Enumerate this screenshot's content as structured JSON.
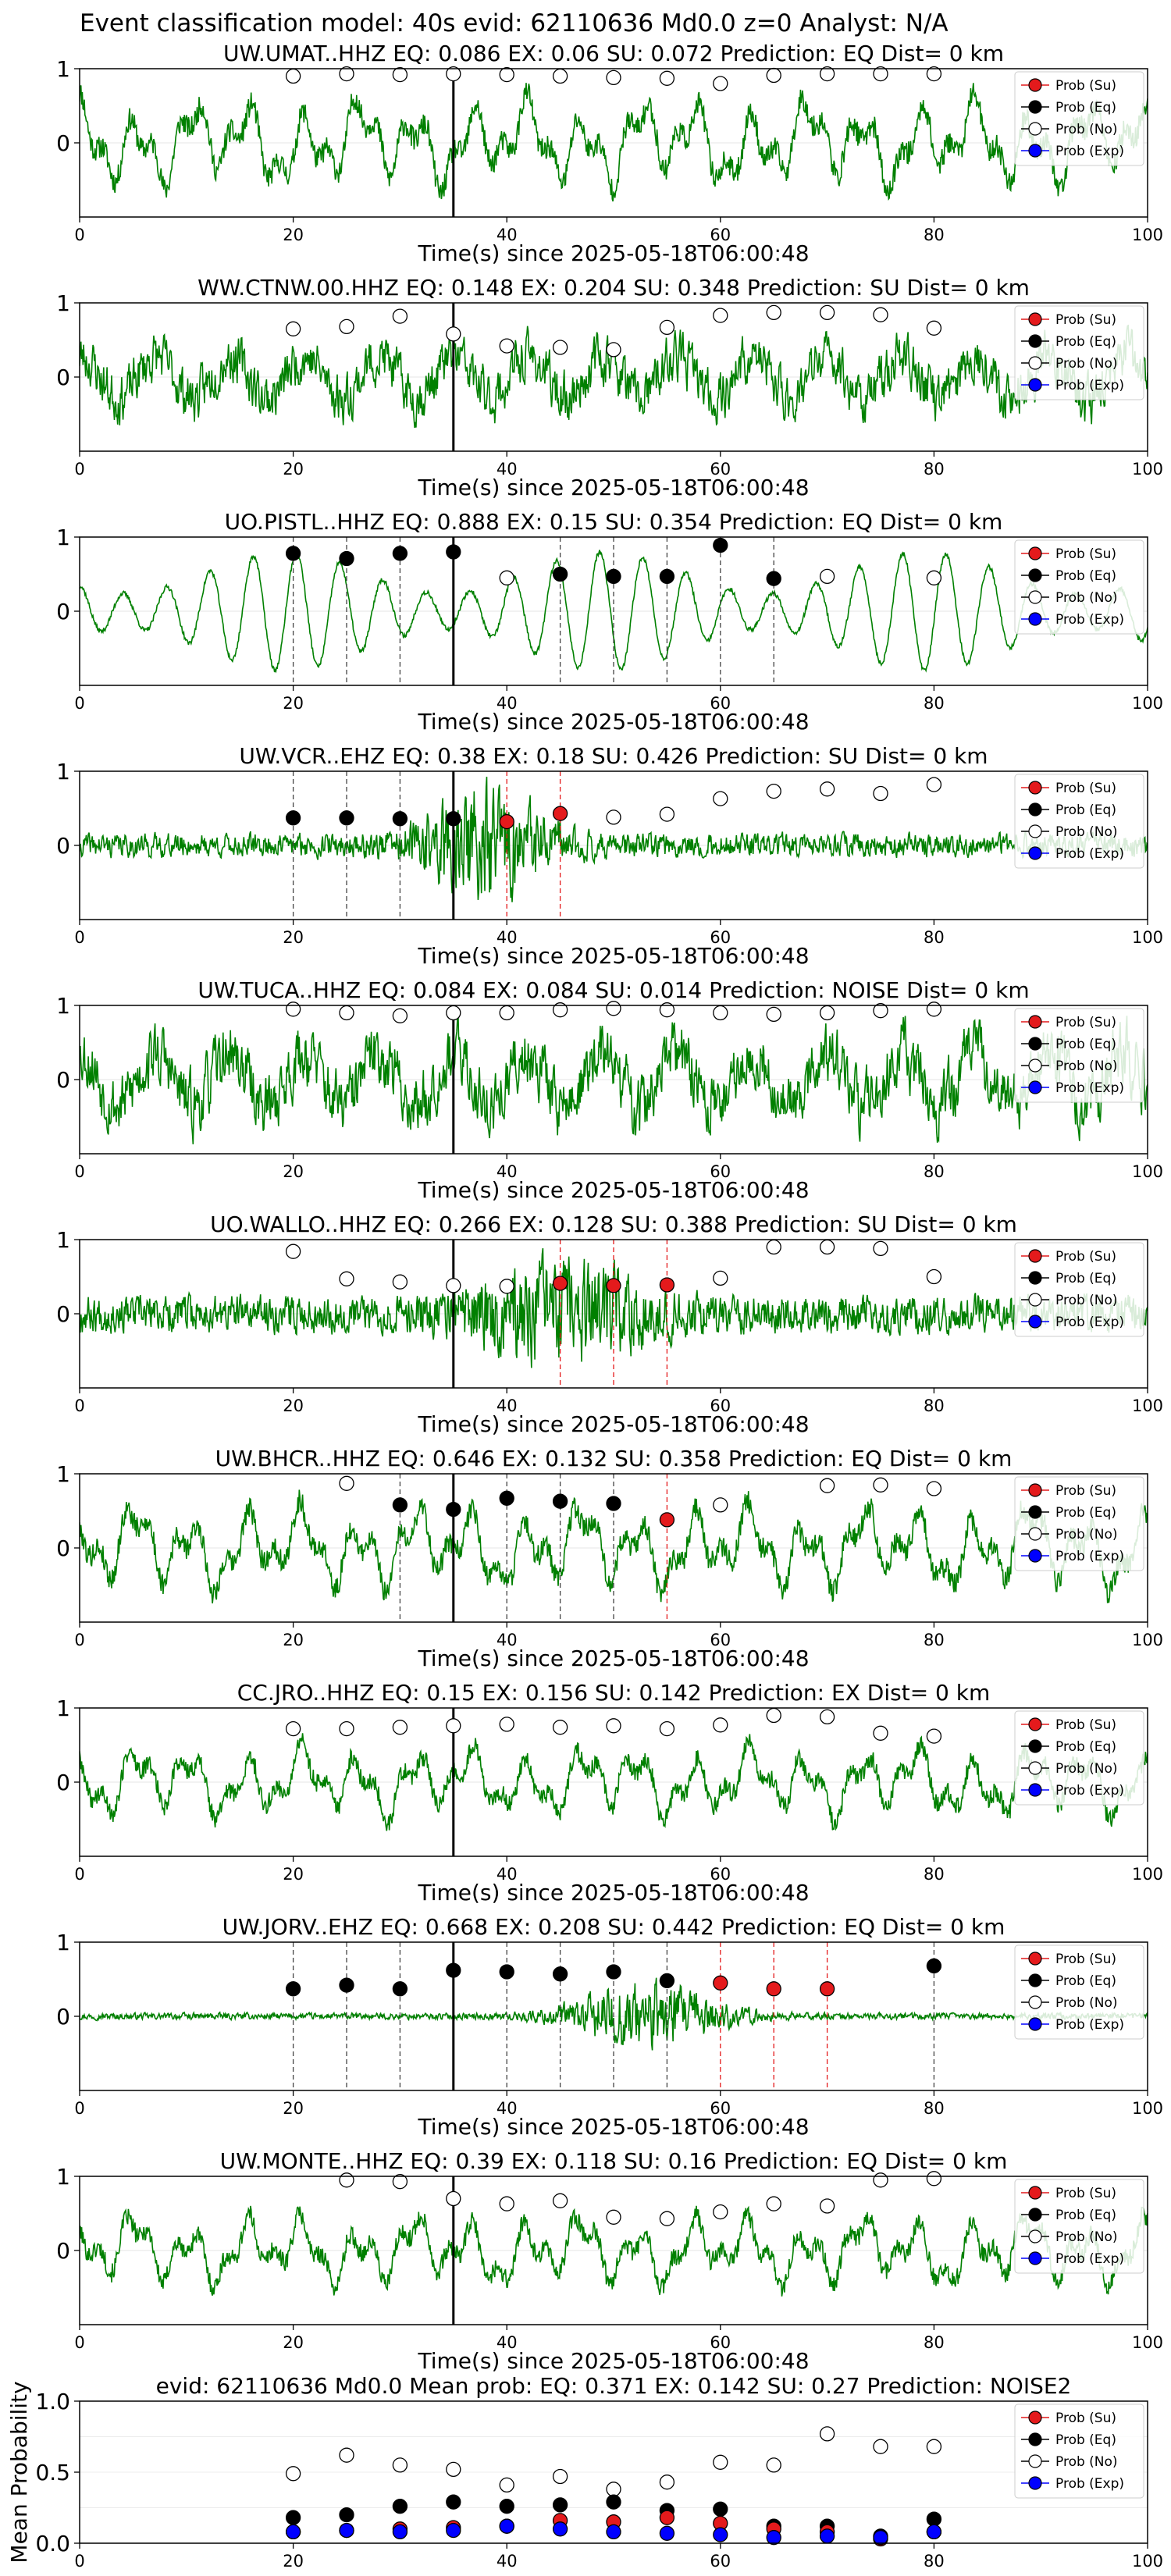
{
  "figure": {
    "suptitle": "Event classification model: 40s evid: 62110636 Md0.0 z=0 Analyst: N/A"
  },
  "legend": {
    "entries": [
      {
        "label": "Prob (Su)",
        "color": "#e41a1c",
        "fill": true
      },
      {
        "label": "Prob (Eq)",
        "color": "#000000",
        "fill": true
      },
      {
        "label": "Prob (No)",
        "color": "#ffffff",
        "fill": false
      },
      {
        "label": "Prob (Exp)",
        "color": "#0000ff",
        "fill": true
      }
    ]
  },
  "colors": {
    "waveform": "#008000",
    "su": "#e41a1c",
    "eq": "#000000",
    "exp": "#0000ff",
    "pick_line": "#000000"
  },
  "chart_data": [
    {
      "type": "line",
      "title": "UW.UMAT..HHZ   EQ: 0.086  EX: 0.06  SU: 0.072   Prediction: EQ    Dist= 0 km",
      "xlabel": "Time(s) since 2025-05-18T06:00:48",
      "xlim": [
        0,
        100
      ],
      "ylim": [
        -1,
        1
      ],
      "xticks": [
        "0",
        "20",
        "40",
        "60",
        "80",
        "100"
      ],
      "yticks": [
        "0",
        "1"
      ],
      "waveform": {
        "style": "lowfreq",
        "amp": 0.62,
        "seed": 11
      },
      "pick_time": 35,
      "x": [
        20,
        25,
        30,
        35,
        40,
        45,
        50,
        55,
        60,
        65,
        70,
        75,
        80
      ],
      "noise": [
        0.9,
        0.93,
        0.92,
        0.93,
        0.92,
        0.9,
        0.88,
        0.87,
        0.8,
        0.91,
        0.93,
        0.93,
        0.93
      ],
      "eq": [],
      "su": [],
      "exp": []
    },
    {
      "type": "line",
      "title": "WW.CTNW.00.HHZ   EQ: 0.148  EX: 0.204  SU: 0.348   Prediction: SU    Dist= 0 km",
      "xlabel": "Time(s) since 2025-05-18T06:00:48",
      "xlim": [
        0,
        100
      ],
      "ylim": [
        -1,
        1
      ],
      "xticks": [
        "0",
        "20",
        "40",
        "60",
        "80",
        "100"
      ],
      "yticks": [
        "0",
        "1"
      ],
      "waveform": {
        "style": "highfreq",
        "amp": 0.55,
        "seed": 23
      },
      "pick_time": 35,
      "x": [
        20,
        25,
        30,
        35,
        40,
        45,
        50,
        55,
        60,
        65,
        70,
        75,
        80
      ],
      "noise": [
        0.65,
        0.68,
        0.82,
        0.58,
        0.42,
        0.4,
        0.37,
        0.67,
        0.83,
        0.87,
        0.87,
        0.84,
        0.66
      ],
      "eq": [],
      "su": [],
      "exp": []
    },
    {
      "type": "line",
      "title": "UO.PISTL..HHZ   EQ: 0.888  EX: 0.15  SU: 0.354   Prediction: EQ    Dist= 0 km",
      "xlabel": "Time(s) since 2025-05-18T06:00:48",
      "xlim": [
        0,
        100
      ],
      "ylim": [
        -1,
        1
      ],
      "xticks": [
        "0",
        "20",
        "40",
        "60",
        "80",
        "100"
      ],
      "yticks": [
        "0",
        "1"
      ],
      "waveform": {
        "style": "sine",
        "amp": 0.8,
        "seed": 37
      },
      "pick_time": 35,
      "x": [
        20,
        25,
        30,
        35,
        40,
        45,
        50,
        55,
        60,
        65,
        70,
        75,
        80
      ],
      "noise": [
        null,
        null,
        null,
        null,
        0.45,
        null,
        null,
        null,
        null,
        null,
        0.47,
        null,
        0.45
      ],
      "eq": [
        0.78,
        0.71,
        0.78,
        0.8,
        null,
        0.5,
        0.47,
        0.47,
        0.89,
        0.44,
        null,
        null,
        null
      ],
      "su": [],
      "exp": [],
      "eq_lines": [
        20,
        25,
        30,
        45,
        50,
        55,
        60,
        65
      ],
      "su_lines": []
    },
    {
      "type": "line",
      "title": "UW.VCR..EHZ   EQ: 0.38  EX: 0.18  SU: 0.426   Prediction: SU    Dist= 0 km",
      "xlabel": "Time(s) since 2025-05-18T06:00:48",
      "xlim": [
        0,
        100
      ],
      "ylim": [
        -1,
        1
      ],
      "xticks": [
        "0",
        "20",
        "40",
        "60",
        "80",
        "100"
      ],
      "yticks": [
        "0",
        "1"
      ],
      "waveform": {
        "style": "burst",
        "amp": 0.22,
        "seed": 41,
        "burst_center": 38,
        "burst_width": 6,
        "burst_amp": 0.9
      },
      "pick_time": 35,
      "x": [
        20,
        25,
        30,
        35,
        40,
        45,
        50,
        55,
        60,
        65,
        70,
        75,
        80
      ],
      "noise": [
        null,
        null,
        null,
        null,
        null,
        null,
        0.38,
        0.42,
        0.63,
        0.73,
        0.76,
        0.7,
        0.82
      ],
      "eq": [
        0.37,
        0.37,
        0.36,
        0.36,
        null,
        null,
        null,
        null,
        null,
        null,
        null,
        null,
        null
      ],
      "su": [
        null,
        null,
        null,
        null,
        0.32,
        0.43,
        null,
        null,
        null,
        null,
        null,
        null,
        null
      ],
      "exp": [],
      "eq_lines": [
        20,
        25,
        30
      ],
      "su_lines": [
        40,
        45
      ]
    },
    {
      "type": "line",
      "title": "UW.TUCA..HHZ   EQ: 0.084  EX: 0.084  SU: 0.014   Prediction: NOISE    Dist= 0 km",
      "xlabel": "Time(s) since 2025-05-18T06:00:48",
      "xlim": [
        0,
        100
      ],
      "ylim": [
        -1,
        1
      ],
      "xticks": [
        "0",
        "20",
        "40",
        "60",
        "80",
        "100"
      ],
      "yticks": [
        "0",
        "1"
      ],
      "waveform": {
        "style": "highfreq",
        "amp": 0.7,
        "seed": 53
      },
      "pick_time": 35,
      "x": [
        20,
        25,
        30,
        35,
        40,
        45,
        50,
        55,
        60,
        65,
        70,
        75,
        80
      ],
      "noise": [
        0.95,
        0.9,
        0.86,
        0.9,
        0.9,
        0.94,
        0.96,
        0.94,
        0.9,
        0.88,
        0.9,
        0.93,
        0.95
      ],
      "eq": [],
      "su": [],
      "exp": []
    },
    {
      "type": "line",
      "title": "UO.WALLO..HHZ   EQ: 0.266  EX: 0.128  SU: 0.388   Prediction: SU    Dist= 0 km",
      "xlabel": "Time(s) since 2025-05-18T06:00:48",
      "xlim": [
        0,
        100
      ],
      "ylim": [
        -1,
        1
      ],
      "xticks": [
        "0",
        "20",
        "40",
        "60",
        "80",
        "100"
      ],
      "yticks": [
        "0",
        "1"
      ],
      "waveform": {
        "style": "burst",
        "amp": 0.35,
        "seed": 67,
        "burst_center": 45,
        "burst_width": 8,
        "burst_amp": 0.7
      },
      "pick_time": 35,
      "x": [
        20,
        25,
        30,
        35,
        40,
        45,
        50,
        55,
        60,
        65,
        70,
        75,
        80
      ],
      "noise": [
        0.84,
        0.47,
        0.43,
        0.38,
        0.37,
        null,
        null,
        null,
        0.48,
        0.9,
        0.9,
        0.88,
        0.5
      ],
      "eq": [],
      "su": [
        null,
        null,
        null,
        null,
        null,
        0.41,
        0.38,
        0.39,
        null,
        null,
        null,
        null,
        null
      ],
      "exp": [],
      "eq_lines": [],
      "su_lines": [
        45,
        50,
        55
      ]
    },
    {
      "type": "line",
      "title": "UW.BHCR..HHZ   EQ: 0.646  EX: 0.132  SU: 0.358   Prediction: EQ    Dist= 0 km",
      "xlabel": "Time(s) since 2025-05-18T06:00:48",
      "xlim": [
        0,
        100
      ],
      "ylim": [
        -1,
        1
      ],
      "xticks": [
        "0",
        "20",
        "40",
        "60",
        "80",
        "100"
      ],
      "yticks": [
        "0",
        "1"
      ],
      "waveform": {
        "style": "lowfreq",
        "amp": 0.6,
        "seed": 79
      },
      "pick_time": 35,
      "x": [
        20,
        25,
        30,
        35,
        40,
        45,
        50,
        55,
        60,
        65,
        70,
        75,
        80
      ],
      "noise": [
        null,
        0.87,
        null,
        null,
        null,
        null,
        null,
        null,
        0.58,
        null,
        0.84,
        0.85,
        0.8
      ],
      "eq": [
        null,
        null,
        0.58,
        0.52,
        0.67,
        0.63,
        0.6,
        null,
        null,
        null,
        null,
        null,
        null
      ],
      "su": [
        null,
        null,
        null,
        null,
        null,
        null,
        null,
        0.38,
        null,
        null,
        null,
        null,
        null
      ],
      "exp": [],
      "eq_lines": [
        30,
        40,
        45,
        50
      ],
      "su_lines": [
        55
      ]
    },
    {
      "type": "line",
      "title": "CC.JRO..HHZ   EQ: 0.15  EX: 0.156  SU: 0.142   Prediction: EX    Dist= 0 km",
      "xlabel": "Time(s) since 2025-05-18T06:00:48",
      "xlim": [
        0,
        100
      ],
      "ylim": [
        -1,
        1
      ],
      "xticks": [
        "0",
        "20",
        "40",
        "60",
        "80",
        "100"
      ],
      "yticks": [
        "0",
        "1"
      ],
      "waveform": {
        "style": "lowfreq",
        "amp": 0.5,
        "seed": 89
      },
      "pick_time": 35,
      "x": [
        20,
        25,
        30,
        35,
        40,
        45,
        50,
        55,
        60,
        65,
        70,
        75,
        80
      ],
      "noise": [
        0.72,
        0.72,
        0.74,
        0.76,
        0.78,
        0.74,
        0.76,
        0.72,
        0.77,
        0.9,
        0.88,
        0.66,
        0.62
      ],
      "eq": [],
      "su": [],
      "exp": []
    },
    {
      "type": "line",
      "title": "UW.JORV..EHZ   EQ: 0.668  EX: 0.208  SU: 0.442   Prediction: EQ    Dist= 0 km",
      "xlabel": "Time(s) since 2025-05-18T06:00:48",
      "xlim": [
        0,
        100
      ],
      "ylim": [
        -1,
        1
      ],
      "xticks": [
        "0",
        "20",
        "40",
        "60",
        "80",
        "100"
      ],
      "yticks": [
        "0",
        "1"
      ],
      "waveform": {
        "style": "burst",
        "amp": 0.06,
        "seed": 97,
        "burst_center": 53,
        "burst_width": 7,
        "burst_amp": 0.6
      },
      "pick_time": 35,
      "x": [
        20,
        25,
        30,
        35,
        40,
        45,
        50,
        55,
        60,
        65,
        70,
        75,
        80
      ],
      "noise": [],
      "eq": [
        0.37,
        0.42,
        0.37,
        0.62,
        0.6,
        0.57,
        0.6,
        0.48,
        null,
        null,
        null,
        null,
        0.68
      ],
      "su": [
        null,
        null,
        null,
        null,
        null,
        null,
        null,
        null,
        0.45,
        0.37,
        0.37,
        null,
        null
      ],
      "exp": [],
      "eq_lines": [
        20,
        25,
        30,
        40,
        45,
        50,
        55,
        80
      ],
      "su_lines": [
        60,
        65,
        70
      ]
    },
    {
      "type": "line",
      "title": "UW.MONTE..HHZ   EQ: 0.39  EX: 0.118  SU: 0.16   Prediction: EQ    Dist= 0 km",
      "xlabel": "Time(s) since 2025-05-18T06:00:48",
      "xlim": [
        0,
        100
      ],
      "ylim": [
        -1,
        1
      ],
      "xticks": [
        "0",
        "20",
        "40",
        "60",
        "80",
        "100"
      ],
      "yticks": [
        "0",
        "1"
      ],
      "waveform": {
        "style": "lowfreq",
        "amp": 0.5,
        "seed": 101
      },
      "pick_time": 35,
      "x": [
        20,
        25,
        30,
        35,
        40,
        45,
        50,
        55,
        60,
        65,
        70,
        75,
        80
      ],
      "noise": [
        null,
        0.95,
        0.93,
        0.7,
        0.63,
        0.67,
        0.45,
        0.43,
        0.52,
        0.63,
        0.6,
        0.95,
        0.97
      ],
      "eq": [],
      "su": [],
      "exp": []
    },
    {
      "type": "scatter",
      "title": "evid: 62110636   Md0.0   Mean prob:   EQ: 0.371  EX: 0.142  SU: 0.27   Prediction: NOISE2",
      "ylabel": "Mean Probability",
      "xlim": [
        0,
        100
      ],
      "ylim": [
        0,
        1
      ],
      "xticks": [
        "0",
        "20",
        "40",
        "60",
        "80",
        "100"
      ],
      "yticks": [
        "0.0",
        "0.5",
        "1.0"
      ],
      "x": [
        20,
        25,
        30,
        35,
        40,
        45,
        50,
        55,
        60,
        65,
        70,
        75,
        80
      ],
      "noise": [
        0.49,
        0.62,
        0.55,
        0.52,
        0.41,
        0.47,
        0.38,
        0.43,
        0.57,
        0.55,
        0.77,
        0.68,
        0.68
      ],
      "eq": [
        0.18,
        0.2,
        0.26,
        0.29,
        0.26,
        0.27,
        0.29,
        0.23,
        0.24,
        0.12,
        0.12,
        0.05,
        0.17
      ],
      "su": [
        0.08,
        0.09,
        0.1,
        0.11,
        0.12,
        0.16,
        0.15,
        0.18,
        0.14,
        0.1,
        0.08,
        0.03,
        0.08
      ],
      "exp": [
        0.08,
        0.09,
        0.08,
        0.09,
        0.12,
        0.1,
        0.08,
        0.07,
        0.06,
        0.04,
        0.05,
        0.04,
        0.08
      ]
    }
  ]
}
